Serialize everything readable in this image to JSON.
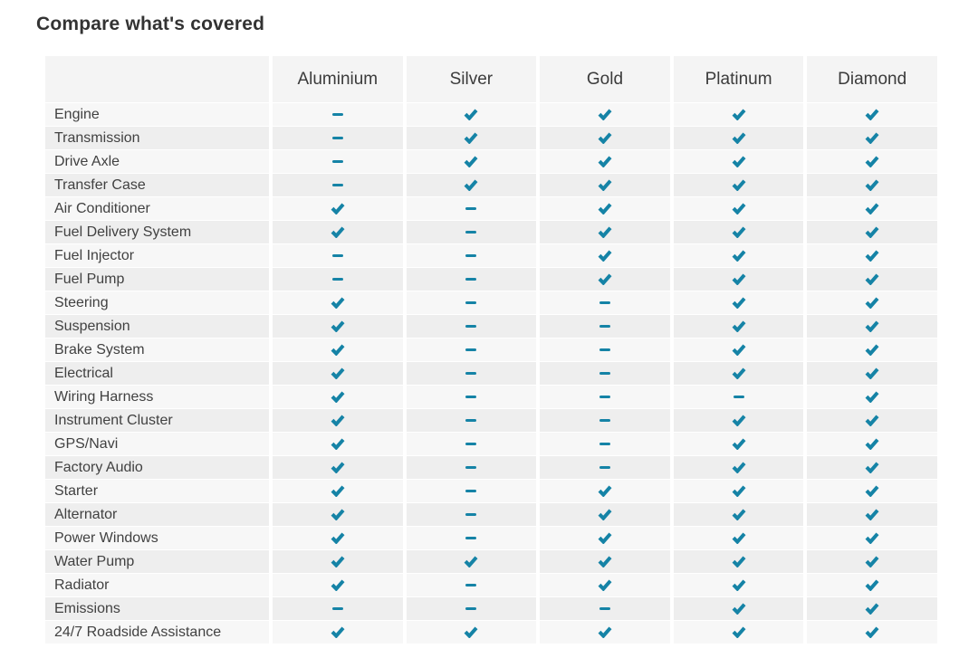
{
  "title": "Compare what's covered",
  "colors": {
    "accent": "#1583a6",
    "header_bg": "#f4f4f4",
    "row_light": "#f7f7f7",
    "row_dark": "#eeeeee",
    "text": "#414141",
    "title_text": "#333333"
  },
  "table": {
    "columns": [
      "Aluminium",
      "Silver",
      "Gold",
      "Platinum",
      "Diamond"
    ],
    "legend": {
      "check": "covered",
      "dash": "not-covered"
    },
    "rows": [
      {
        "label": "Engine",
        "values": [
          "dash",
          "check",
          "check",
          "check",
          "check"
        ]
      },
      {
        "label": "Transmission",
        "values": [
          "dash",
          "check",
          "check",
          "check",
          "check"
        ]
      },
      {
        "label": "Drive Axle",
        "values": [
          "dash",
          "check",
          "check",
          "check",
          "check"
        ]
      },
      {
        "label": "Transfer Case",
        "values": [
          "dash",
          "check",
          "check",
          "check",
          "check"
        ]
      },
      {
        "label": "Air Conditioner",
        "values": [
          "check",
          "dash",
          "check",
          "check",
          "check"
        ]
      },
      {
        "label": "Fuel Delivery System",
        "values": [
          "check",
          "dash",
          "check",
          "check",
          "check"
        ]
      },
      {
        "label": "Fuel Injector",
        "values": [
          "dash",
          "dash",
          "check",
          "check",
          "check"
        ]
      },
      {
        "label": "Fuel Pump",
        "values": [
          "dash",
          "dash",
          "check",
          "check",
          "check"
        ]
      },
      {
        "label": "Steering",
        "values": [
          "check",
          "dash",
          "dash",
          "check",
          "check"
        ]
      },
      {
        "label": "Suspension",
        "values": [
          "check",
          "dash",
          "dash",
          "check",
          "check"
        ]
      },
      {
        "label": "Brake System",
        "values": [
          "check",
          "dash",
          "dash",
          "check",
          "check"
        ]
      },
      {
        "label": "Electrical",
        "values": [
          "check",
          "dash",
          "dash",
          "check",
          "check"
        ]
      },
      {
        "label": "Wiring Harness",
        "values": [
          "check",
          "dash",
          "dash",
          "dash",
          "check"
        ]
      },
      {
        "label": "Instrument Cluster",
        "values": [
          "check",
          "dash",
          "dash",
          "check",
          "check"
        ]
      },
      {
        "label": "GPS/Navi",
        "values": [
          "check",
          "dash",
          "dash",
          "check",
          "check"
        ]
      },
      {
        "label": "Factory Audio",
        "values": [
          "check",
          "dash",
          "dash",
          "check",
          "check"
        ]
      },
      {
        "label": "Starter",
        "values": [
          "check",
          "dash",
          "check",
          "check",
          "check"
        ]
      },
      {
        "label": "Alternator",
        "values": [
          "check",
          "dash",
          "check",
          "check",
          "check"
        ]
      },
      {
        "label": "Power Windows",
        "values": [
          "check",
          "dash",
          "check",
          "check",
          "check"
        ]
      },
      {
        "label": "Water Pump",
        "values": [
          "check",
          "check",
          "check",
          "check",
          "check"
        ]
      },
      {
        "label": "Radiator",
        "values": [
          "check",
          "dash",
          "check",
          "check",
          "check"
        ]
      },
      {
        "label": "Emissions",
        "values": [
          "dash",
          "dash",
          "dash",
          "check",
          "check"
        ]
      },
      {
        "label": "24/7 Roadside Assistance",
        "values": [
          "check",
          "check",
          "check",
          "check",
          "check"
        ]
      }
    ]
  }
}
